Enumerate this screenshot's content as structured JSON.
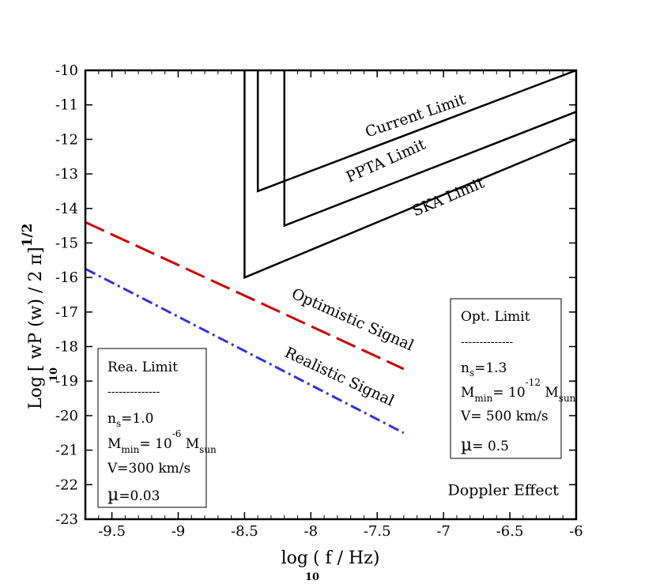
{
  "chart_data": {
    "type": "line",
    "xlabel": "log",
    "xlabel_sub": "10",
    "xlabel_rest": "( f / Hz)",
    "ylabel": "Log",
    "ylabel_sub": "10",
    "ylabel_rest": "[ wP (w) / 2 π]",
    "ylabel_sup": "1/2",
    "xlim": [
      -9.7,
      -6
    ],
    "ylim": [
      -23,
      -10
    ],
    "x_ticks": [
      -9.5,
      -9,
      -8.5,
      -8,
      -7.5,
      -7,
      -6.5,
      -6
    ],
    "x_tick_labels": [
      "-9.5",
      "-9",
      "-8.5",
      "-8",
      "-7.5",
      "-7",
      "-6.5",
      "-6"
    ],
    "y_ticks": [
      -10,
      -11,
      -12,
      -13,
      -14,
      -15,
      -16,
      -17,
      -18,
      -19,
      -20,
      -21,
      -22,
      -23
    ],
    "y_tick_labels": [
      "-10",
      "-11",
      "-12",
      "-13",
      "-14",
      "-15",
      "-16",
      "-17",
      "-18",
      "-19",
      "-20",
      "-21",
      "-22",
      "-23"
    ],
    "grid": false,
    "series": [
      {
        "name": "Current Limit",
        "style": "solid",
        "color": "#000000",
        "x": [
          -8.4,
          -8.4,
          -6.0
        ],
        "y": [
          -10.0,
          -13.5,
          -10.0
        ]
      },
      {
        "name": "PPTA Limit",
        "style": "solid",
        "color": "#000000",
        "x": [
          -8.2,
          -8.2,
          -6.0
        ],
        "y": [
          -10.0,
          -14.5,
          -11.2
        ]
      },
      {
        "name": "SKA Limit",
        "style": "solid",
        "color": "#000000",
        "x": [
          -8.5,
          -8.5,
          -6.0
        ],
        "y": [
          -10.0,
          -16.0,
          -12.0
        ]
      },
      {
        "name": "Optimistic Signal",
        "style": "dashed",
        "color": "#cc0000",
        "x": [
          -9.7,
          -7.3
        ],
        "y": [
          -14.4,
          -18.65
        ]
      },
      {
        "name": "Realistic Signal",
        "style": "dashdot",
        "color": "#3333dd",
        "x": [
          -9.7,
          -7.3
        ],
        "y": [
          -15.75,
          -20.5
        ]
      }
    ],
    "annotations": [
      {
        "text": "Current Limit",
        "x": -7.2,
        "y": -11.45,
        "angle": -19
      },
      {
        "text": "PPTA Limit",
        "x": -7.42,
        "y": -12.75,
        "angle": -24
      },
      {
        "text": "SKA Limit",
        "x": -6.95,
        "y": -13.8,
        "angle": -23
      },
      {
        "text": "Optimistic Signal",
        "x": -7.7,
        "y": -17.35,
        "angle": 24
      },
      {
        "text": "Realistic Signal",
        "x": -7.8,
        "y": -19.0,
        "angle": 25
      },
      {
        "text": "Doppler  Effect",
        "x": -6.55,
        "y": -22.3,
        "angle": 0
      }
    ],
    "boxes": {
      "realistic": {
        "title": "Rea. Limit",
        "dashes": "--------------",
        "ns": {
          "main": "n",
          "sub": "s",
          "rest": "=1.0"
        },
        "mmin": {
          "main": "M",
          "sub": "min",
          "rest": "= 10",
          "exp": "-6",
          "unit": " M",
          "unit_sub": "sun"
        },
        "velocity": "V=300 km/s",
        "mu": {
          "sym": "µ",
          "rest": "=0.03"
        }
      },
      "optimistic": {
        "title": "Opt. Limit",
        "dashes": "--------------",
        "ns": {
          "main": "n",
          "sub": "s",
          "rest": "=1.3"
        },
        "mmin": {
          "main": "M",
          "sub": "min",
          "rest": "= 10",
          "exp": "-12",
          "unit": " M",
          "unit_sub": "sun"
        },
        "velocity": "V= 500 km/s",
        "mu": {
          "sym": "µ",
          "rest": "= 0.5"
        }
      }
    }
  }
}
